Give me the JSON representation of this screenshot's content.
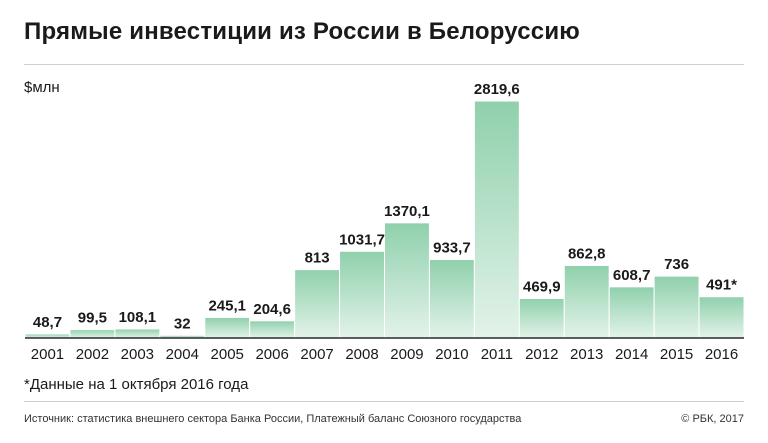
{
  "header": {
    "title": "Прямые инвестиции из России в Белоруссию",
    "unit": "$млн"
  },
  "footer": {
    "footnote": "*Данные на 1 октября 2016 года",
    "source": "Источник: статистика внешнего сектора Банка России, Платежный баланс Союзного государства",
    "copyright": "© РБК, 2017"
  },
  "colors": {
    "bar_top": "#8fd0ac",
    "bar_bottom": "#e3f3e9",
    "baseline": "#2a2a2a"
  },
  "chart_data": {
    "type": "bar",
    "title": "Прямые инвестиции из России в Белоруссию",
    "ylabel": "$млн",
    "xlabel": "",
    "categories": [
      "2001",
      "2002",
      "2003",
      "2004",
      "2005",
      "2006",
      "2007",
      "2008",
      "2009",
      "2010",
      "2011",
      "2012",
      "2013",
      "2014",
      "2015",
      "2016"
    ],
    "values": [
      48.7,
      99.5,
      108.1,
      32,
      245.1,
      204.6,
      813,
      1031.7,
      1370.1,
      933.7,
      2819.6,
      469.9,
      862.8,
      608.7,
      736,
      491
    ],
    "value_labels": [
      "48,7",
      "99,5",
      "108,1",
      "32",
      "245,1",
      "204,6",
      "813",
      "1031,7",
      "1370,1",
      "933,7",
      "2819,6",
      "469,9",
      "862,8",
      "608,7",
      "736",
      "491*"
    ],
    "ylim": [
      0,
      2819.6
    ],
    "grid": false,
    "legend": "none"
  }
}
